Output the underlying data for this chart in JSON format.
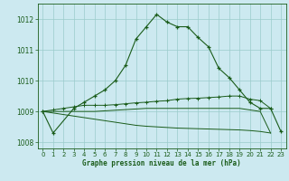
{
  "title": "Graphe pression niveau de la mer (hPa)",
  "background_color": "#cce9f0",
  "grid_color": "#9bcbcb",
  "line_color": "#1a5c1a",
  "ylim": [
    1007.8,
    1012.5
  ],
  "yticks": [
    1008,
    1009,
    1010,
    1011,
    1012
  ],
  "xlim": [
    -0.5,
    23.5
  ],
  "xticks": [
    0,
    1,
    2,
    3,
    4,
    5,
    6,
    7,
    8,
    9,
    10,
    11,
    12,
    13,
    14,
    15,
    16,
    17,
    18,
    19,
    20,
    21,
    22,
    23
  ],
  "line1_x": [
    0,
    1,
    3,
    4,
    5,
    6,
    7,
    8,
    9,
    10,
    11,
    12,
    13,
    14,
    15,
    16,
    17,
    18,
    19,
    20,
    21,
    22,
    23
  ],
  "line1_y": [
    1009.0,
    1008.3,
    1009.1,
    1009.3,
    1009.5,
    1009.7,
    1010.0,
    1010.5,
    1011.35,
    1011.75,
    1012.15,
    1011.9,
    1011.75,
    1011.75,
    1011.4,
    1011.1,
    1010.4,
    1010.1,
    1009.7,
    1009.3,
    1009.1,
    1009.1,
    1008.35
  ],
  "line2_x": [
    0,
    1,
    2,
    3,
    4,
    5,
    6,
    7,
    8,
    9,
    10,
    11,
    12,
    13,
    14,
    15,
    16,
    17,
    18,
    19,
    20,
    21,
    22
  ],
  "line2_y": [
    1009.0,
    1009.05,
    1009.1,
    1009.15,
    1009.2,
    1009.2,
    1009.2,
    1009.22,
    1009.25,
    1009.28,
    1009.3,
    1009.33,
    1009.35,
    1009.4,
    1009.42,
    1009.43,
    1009.45,
    1009.47,
    1009.5,
    1009.5,
    1009.4,
    1009.35,
    1009.1
  ],
  "line3_x": [
    0,
    1,
    2,
    3,
    4,
    5,
    6,
    7,
    8,
    9,
    10,
    11,
    12,
    13,
    14,
    15,
    16,
    17,
    18,
    19,
    20,
    21,
    22
  ],
  "line3_y": [
    1009.0,
    1009.0,
    1009.0,
    1009.0,
    1009.0,
    1009.0,
    1009.02,
    1009.04,
    1009.06,
    1009.08,
    1009.1,
    1009.1,
    1009.1,
    1009.1,
    1009.1,
    1009.1,
    1009.1,
    1009.1,
    1009.1,
    1009.1,
    1009.05,
    1009.0,
    1008.3
  ],
  "line4_x": [
    0,
    1,
    2,
    3,
    4,
    5,
    6,
    7,
    8,
    9,
    10,
    11,
    12,
    13,
    14,
    15,
    16,
    17,
    18,
    19,
    20,
    21,
    22
  ],
  "line4_y": [
    1009.0,
    1008.95,
    1008.9,
    1008.85,
    1008.8,
    1008.75,
    1008.7,
    1008.65,
    1008.6,
    1008.55,
    1008.52,
    1008.5,
    1008.48,
    1008.46,
    1008.45,
    1008.44,
    1008.43,
    1008.42,
    1008.41,
    1008.4,
    1008.38,
    1008.35,
    1008.3
  ]
}
